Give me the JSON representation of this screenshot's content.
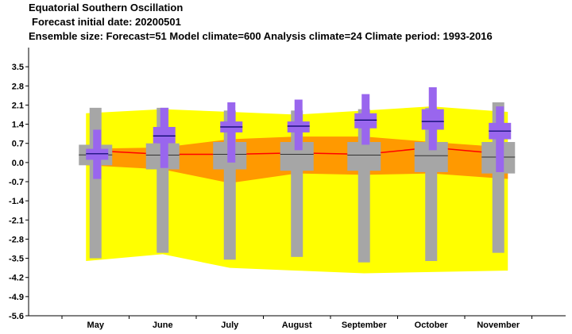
{
  "header": {
    "title": "Equatorial Southern Oscillation",
    "subtitle1": "Forecast initial date: 20200501",
    "subtitle2": "Ensemble size: Forecast=51 Model climate=600 Analysis climate=24   Climate period: 1993-2016"
  },
  "chart_data": {
    "type": "box",
    "categories": [
      "May",
      "June",
      "July",
      "August",
      "September",
      "October",
      "November"
    ],
    "ylim": [
      -5.6,
      4.2
    ],
    "yticks": [
      3.5,
      2.8,
      2.1,
      1.4,
      0.7,
      0.0,
      -0.7,
      -1.4,
      -2.1,
      -2.8,
      -3.5,
      -4.2,
      -4.9,
      -5.6
    ],
    "ytick_labels": [
      "3.5",
      "2.8",
      "2.1",
      "1.4",
      "0.7",
      "0.0",
      "-0.7",
      "-1.4",
      "-2.1",
      "-2.8",
      "-3.5",
      "-4.2",
      "-4.9",
      "-5.6"
    ],
    "analysis_climate_outer": {
      "upper": [
        1.8,
        1.95,
        1.85,
        1.75,
        1.9,
        2.05,
        1.85
      ],
      "lower": [
        -3.6,
        -3.35,
        -3.85,
        -3.95,
        -4.05,
        -4.0,
        -3.95
      ]
    },
    "analysis_climate_inner": {
      "upper": [
        0.5,
        0.55,
        0.85,
        0.95,
        0.95,
        0.75,
        0.55
      ],
      "lower": [
        -0.1,
        -0.25,
        -0.75,
        -0.4,
        -0.45,
        -0.4,
        -0.6
      ]
    },
    "analysis_climate_median": [
      0.45,
      0.3,
      0.3,
      0.35,
      0.3,
      0.55,
      0.3
    ],
    "model_climate": [
      {
        "min": -3.5,
        "p10": -0.1,
        "p25": -0.1,
        "median": 0.28,
        "p75": 0.65,
        "p90": 0.65,
        "max": 2.0
      },
      {
        "min": -3.3,
        "p10": -0.25,
        "p25": -0.25,
        "median": 0.27,
        "p75": 0.7,
        "p90": 0.7,
        "max": 2.0
      },
      {
        "min": -3.55,
        "p10": -0.25,
        "p25": -0.25,
        "median": 0.3,
        "p75": 0.75,
        "p90": 0.75,
        "max": 1.9
      },
      {
        "min": -3.45,
        "p10": -0.3,
        "p25": -0.3,
        "median": 0.3,
        "p75": 0.75,
        "p90": 0.75,
        "max": 1.9
      },
      {
        "min": -3.65,
        "p10": -0.3,
        "p25": -0.3,
        "median": 0.27,
        "p75": 0.75,
        "p90": 0.75,
        "max": 1.95
      },
      {
        "min": -3.6,
        "p10": -0.35,
        "p25": -0.35,
        "median": 0.25,
        "p75": 0.75,
        "p90": 0.75,
        "max": 2.0
      },
      {
        "min": -3.3,
        "p10": -0.4,
        "p25": -0.4,
        "median": 0.2,
        "p75": 0.75,
        "p90": 0.75,
        "max": 2.2
      }
    ],
    "forecast": [
      {
        "min": -0.6,
        "p25": 0.1,
        "median": 0.32,
        "p75": 0.5,
        "max": 1.2
      },
      {
        "min": -0.2,
        "p25": 0.7,
        "median": 0.97,
        "p75": 1.3,
        "max": 2.0
      },
      {
        "min": 0.0,
        "p25": 1.1,
        "median": 1.3,
        "p75": 1.5,
        "max": 2.2
      },
      {
        "min": 0.45,
        "p25": 1.1,
        "median": 1.33,
        "p75": 1.5,
        "max": 2.3
      },
      {
        "min": 0.65,
        "p25": 1.25,
        "median": 1.55,
        "p75": 1.8,
        "max": 2.5
      },
      {
        "min": 0.45,
        "p25": 1.2,
        "median": 1.5,
        "p75": 1.95,
        "max": 2.75
      },
      {
        "min": -0.35,
        "p25": 0.85,
        "median": 1.15,
        "p75": 1.45,
        "max": 2.05
      }
    ],
    "colors": {
      "outer_band": "#ffff00",
      "inner_band": "#ff9900",
      "median_line": "#ff0000",
      "model_climate": "#a6a6a6",
      "forecast": "#9966ee",
      "forecast_median": "#000066"
    },
    "grid": false
  }
}
